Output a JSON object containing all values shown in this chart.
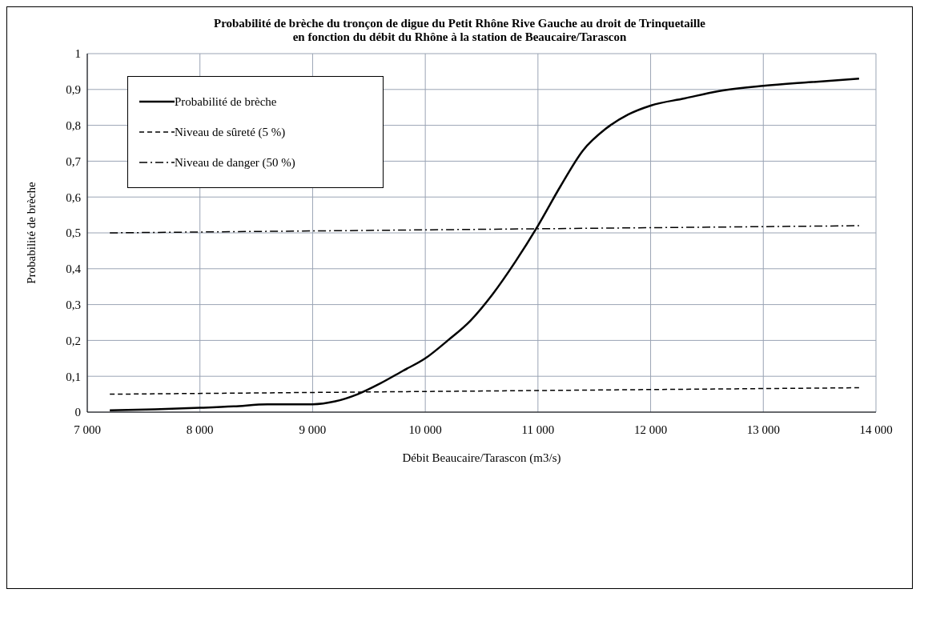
{
  "chart_data": {
    "type": "line",
    "title": "Probabilité de brèche du tronçon de digue du Petit Rhône Rive Gauche au droit de Trinquetaille\nen fonction du débit du Rhône à la station de Beaucaire/Tarascon",
    "xlabel": "Débit Beaucaire/Tarascon  (m3/s)",
    "ylabel": "Probabilité de brèche",
    "xlim": [
      7000,
      14000
    ],
    "xticks": [
      {
        "value": 7000,
        "label": "7 000"
      },
      {
        "value": 8000,
        "label": "8 000"
      },
      {
        "value": 9000,
        "label": "9 000"
      },
      {
        "value": 10000,
        "label": "10 000"
      },
      {
        "value": 11000,
        "label": "11 000"
      },
      {
        "value": 12000,
        "label": "12 000"
      },
      {
        "value": 13000,
        "label": "13 000"
      },
      {
        "value": 14000,
        "label": "14 000"
      }
    ],
    "ylim": [
      0,
      1
    ],
    "yticks": [
      0,
      {
        "value": 0.1,
        "label": "0,1"
      },
      {
        "value": 0.2,
        "label": "0,2"
      },
      {
        "value": 0.3,
        "label": "0,3"
      },
      {
        "value": 0.4,
        "label": "0,4"
      },
      {
        "value": 0.5,
        "label": "0,5"
      },
      {
        "value": 0.6,
        "label": "0,6"
      },
      {
        "value": 0.7,
        "label": "0,7"
      },
      {
        "value": 0.8,
        "label": "0,8"
      },
      {
        "value": 0.9,
        "label": "0,9"
      },
      1
    ],
    "grid": true,
    "legend": "top left",
    "marker": "none",
    "series": [
      {
        "name": "Probabilité de brèche",
        "color": "#000000",
        "line_style": "solid",
        "x": [
          7200,
          7600,
          8000,
          8300,
          8600,
          8800,
          9000,
          9200,
          9400,
          9600,
          9800,
          10000,
          10200,
          10400,
          10600,
          10800,
          11000,
          11200,
          11400,
          11600,
          11800,
          12000,
          12300,
          12600,
          13000,
          13400,
          13850
        ],
        "values": [
          0.005,
          0.008,
          0.012,
          0.016,
          0.022,
          0.022,
          0.022,
          0.03,
          0.05,
          0.08,
          0.115,
          0.15,
          0.2,
          0.255,
          0.33,
          0.42,
          0.52,
          0.63,
          0.73,
          0.79,
          0.83,
          0.855,
          0.875,
          0.895,
          0.91,
          0.92,
          0.93
        ]
      },
      {
        "name": "Niveau de sûreté (5 %)",
        "color": "#000000",
        "line_style": "dashed",
        "x": [
          7200,
          13850
        ],
        "values": [
          0.05,
          0.068
        ]
      },
      {
        "name": "Niveau de danger (50 %)",
        "color": "#000000",
        "line_style": "dashdot",
        "x": [
          7200,
          13850
        ],
        "values": [
          0.5,
          0.52
        ]
      }
    ]
  }
}
